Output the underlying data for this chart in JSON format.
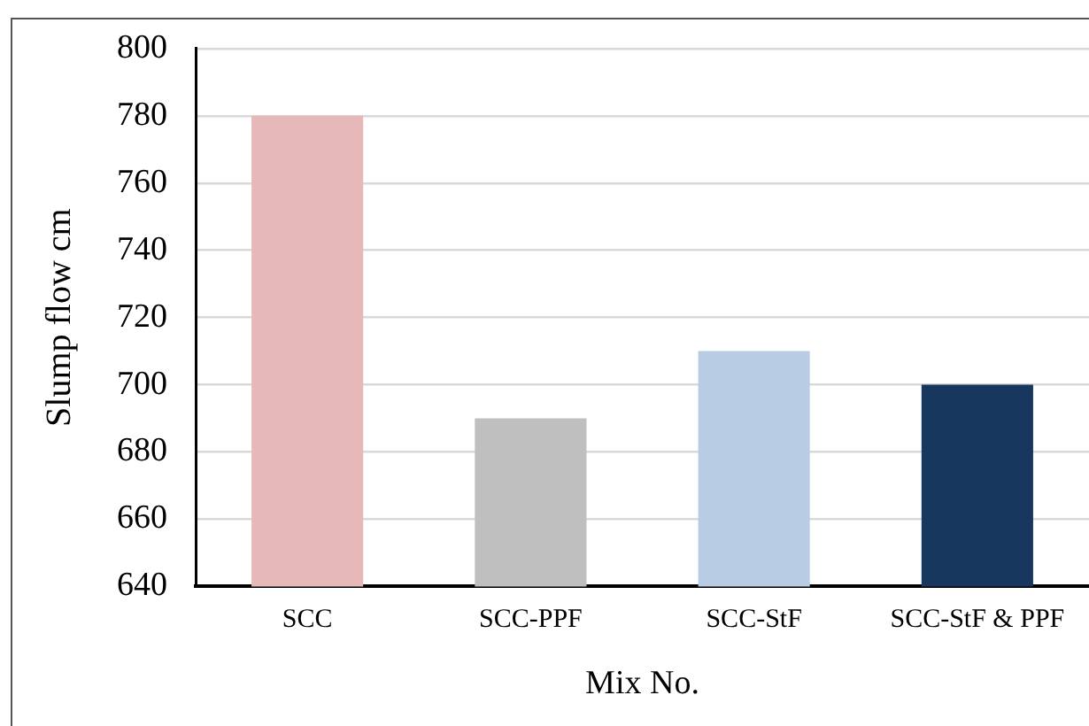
{
  "chart_data": {
    "type": "bar",
    "xlabel": "Mix No.",
    "ylabel": "Slump flow cm",
    "categories": [
      "SCC",
      "SCC-PPF",
      "SCC-StF",
      "SCC-StF & PPF"
    ],
    "values": [
      780,
      690,
      710,
      700
    ],
    "colors": [
      "#e6b8b7",
      "#bfbfbf",
      "#b8cce4",
      "#17375e"
    ],
    "ylim": [
      640,
      800
    ],
    "yticks": [
      640,
      660,
      680,
      700,
      720,
      740,
      760,
      780,
      800
    ],
    "grid": "y",
    "legend": false
  }
}
